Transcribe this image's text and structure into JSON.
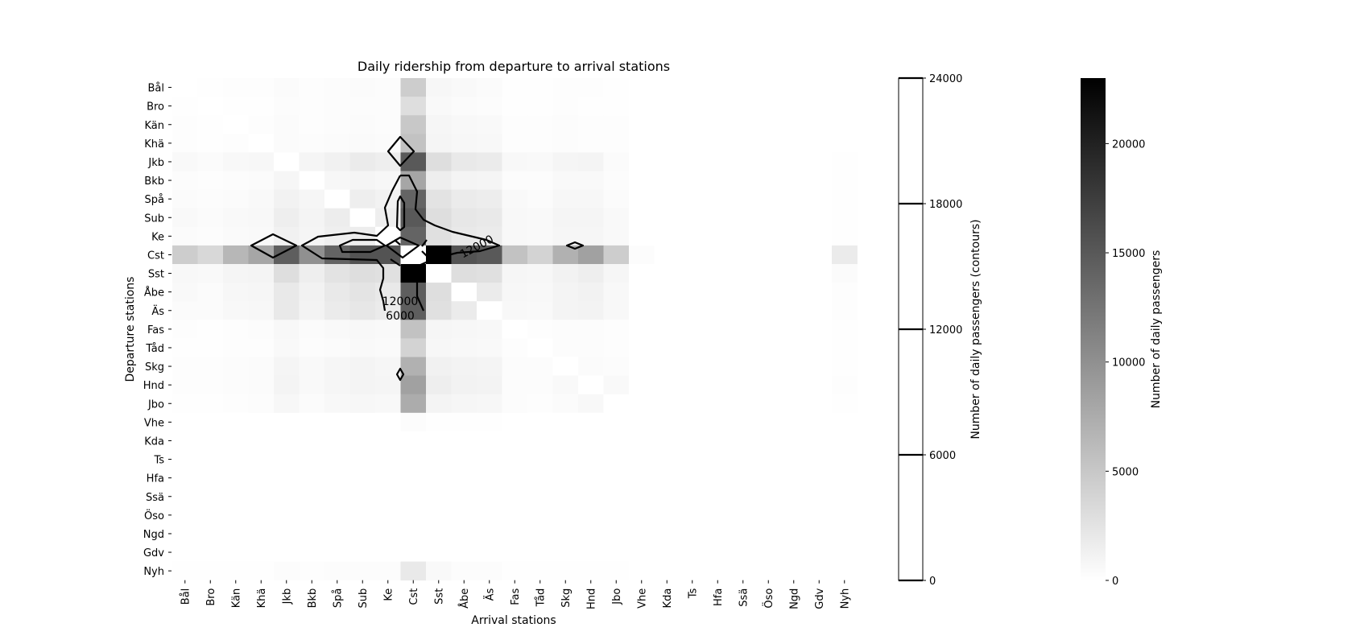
{
  "chart_data": {
    "type": "heatmap",
    "title": "Daily ridership from departure to arrival stations",
    "xlabel": "Arrival stations",
    "ylabel": "Departure stations",
    "stations": [
      "Bål",
      "Bro",
      "Kän",
      "Khä",
      "Jkb",
      "Bkb",
      "Spå",
      "Sub",
      "Ke",
      "Cst",
      "Sst",
      "Åbe",
      "Äs",
      "Fas",
      "Tåd",
      "Skg",
      "Hnd",
      "Jbo",
      "Vhe",
      "Kda",
      "Ts",
      "Hfa",
      "Ssä",
      "Öso",
      "Ngd",
      "Gdv",
      "Nyh"
    ],
    "values": [
      [
        0,
        100,
        150,
        150,
        400,
        200,
        300,
        400,
        300,
        4500,
        700,
        500,
        400,
        100,
        100,
        200,
        150,
        100,
        0,
        0,
        0,
        0,
        0,
        0,
        0,
        0,
        0
      ],
      [
        100,
        0,
        100,
        100,
        300,
        150,
        250,
        300,
        250,
        3000,
        500,
        400,
        300,
        100,
        100,
        150,
        100,
        100,
        0,
        0,
        0,
        0,
        0,
        0,
        0,
        0,
        0
      ],
      [
        150,
        100,
        0,
        150,
        400,
        200,
        300,
        400,
        300,
        5000,
        800,
        600,
        500,
        150,
        150,
        250,
        200,
        150,
        0,
        0,
        0,
        0,
        0,
        0,
        0,
        0,
        0
      ],
      [
        150,
        100,
        150,
        0,
        400,
        250,
        350,
        450,
        350,
        5500,
        900,
        700,
        600,
        150,
        150,
        250,
        200,
        150,
        0,
        0,
        0,
        0,
        0,
        0,
        0,
        0,
        0
      ],
      [
        500,
        400,
        600,
        700,
        0,
        900,
        1300,
        1800,
        1500,
        15000,
        3000,
        2000,
        1800,
        600,
        500,
        900,
        1000,
        400,
        0,
        0,
        0,
        0,
        0,
        0,
        0,
        0,
        100
      ],
      [
        300,
        200,
        300,
        350,
        800,
        0,
        700,
        900,
        700,
        8000,
        1500,
        1000,
        900,
        300,
        300,
        500,
        500,
        300,
        0,
        0,
        0,
        0,
        0,
        0,
        0,
        0,
        50
      ],
      [
        400,
        300,
        400,
        500,
        1200,
        800,
        0,
        1500,
        1200,
        14000,
        2500,
        1800,
        1600,
        500,
        400,
        700,
        700,
        400,
        0,
        0,
        0,
        0,
        0,
        0,
        0,
        0,
        100
      ],
      [
        500,
        350,
        500,
        600,
        1500,
        1000,
        1600,
        0,
        1500,
        15000,
        3000,
        2200,
        2000,
        600,
        500,
        900,
        900,
        500,
        0,
        0,
        0,
        0,
        0,
        0,
        0,
        0,
        100
      ],
      [
        400,
        300,
        450,
        550,
        1300,
        900,
        1400,
        1600,
        0,
        14000,
        2800,
        2000,
        1800,
        600,
        500,
        800,
        800,
        500,
        0,
        0,
        0,
        0,
        0,
        0,
        0,
        0,
        100
      ],
      [
        4500,
        3500,
        6500,
        8000,
        14500,
        10000,
        14000,
        15500,
        15500,
        0,
        23000,
        15500,
        15000,
        5500,
        4000,
        7000,
        8500,
        4500,
        300,
        0,
        0,
        0,
        0,
        0,
        0,
        0,
        1800
      ],
      [
        600,
        500,
        900,
        1000,
        3000,
        1500,
        2500,
        3000,
        2800,
        23000,
        0,
        3000,
        2800,
        800,
        700,
        1200,
        1500,
        800,
        0,
        0,
        0,
        0,
        0,
        0,
        0,
        0,
        400
      ],
      [
        500,
        400,
        700,
        800,
        2000,
        1200,
        2000,
        2400,
        2000,
        14500,
        3000,
        0,
        1800,
        700,
        600,
        1000,
        1200,
        600,
        0,
        0,
        0,
        0,
        0,
        0,
        0,
        0,
        200
      ],
      [
        400,
        350,
        600,
        700,
        2000,
        1100,
        1800,
        2200,
        1800,
        14500,
        2800,
        1800,
        0,
        600,
        500,
        1000,
        1100,
        600,
        0,
        0,
        0,
        0,
        0,
        0,
        0,
        0,
        200
      ],
      [
        150,
        100,
        200,
        250,
        600,
        350,
        500,
        600,
        550,
        5500,
        800,
        700,
        600,
        0,
        200,
        300,
        300,
        200,
        0,
        0,
        0,
        0,
        0,
        0,
        0,
        0,
        50
      ],
      [
        100,
        100,
        150,
        200,
        500,
        300,
        400,
        500,
        450,
        4000,
        700,
        600,
        500,
        200,
        0,
        300,
        300,
        200,
        0,
        0,
        0,
        0,
        0,
        0,
        0,
        0,
        50
      ],
      [
        200,
        150,
        300,
        350,
        900,
        500,
        800,
        1000,
        800,
        7000,
        1300,
        1100,
        1000,
        300,
        300,
        0,
        400,
        300,
        0,
        0,
        0,
        0,
        0,
        0,
        0,
        0,
        100
      ],
      [
        200,
        150,
        300,
        350,
        1000,
        500,
        800,
        1000,
        900,
        8500,
        1500,
        1200,
        1100,
        300,
        300,
        500,
        0,
        500,
        0,
        0,
        0,
        0,
        0,
        0,
        0,
        0,
        150
      ],
      [
        100,
        100,
        200,
        250,
        700,
        400,
        600,
        700,
        600,
        7500,
        1000,
        800,
        700,
        300,
        200,
        400,
        600,
        0,
        0,
        0,
        0,
        0,
        0,
        0,
        0,
        0,
        50
      ],
      [
        0,
        0,
        0,
        0,
        0,
        0,
        0,
        0,
        0,
        300,
        100,
        50,
        50,
        0,
        0,
        0,
        0,
        0,
        0,
        0,
        0,
        0,
        0,
        0,
        0,
        0,
        0
      ],
      [
        0,
        0,
        0,
        0,
        0,
        0,
        0,
        0,
        0,
        0,
        0,
        0,
        0,
        0,
        0,
        0,
        0,
        0,
        0,
        0,
        0,
        0,
        0,
        0,
        0,
        0,
        0
      ],
      [
        0,
        0,
        0,
        0,
        0,
        0,
        0,
        0,
        0,
        0,
        0,
        0,
        0,
        0,
        0,
        0,
        0,
        0,
        0,
        0,
        0,
        0,
        0,
        0,
        0,
        0,
        0
      ],
      [
        0,
        0,
        0,
        0,
        0,
        0,
        0,
        0,
        0,
        0,
        0,
        0,
        0,
        0,
        0,
        0,
        0,
        0,
        0,
        0,
        0,
        0,
        0,
        0,
        0,
        0,
        0
      ],
      [
        0,
        0,
        0,
        0,
        0,
        0,
        0,
        0,
        0,
        0,
        0,
        0,
        0,
        0,
        0,
        0,
        0,
        0,
        0,
        0,
        0,
        0,
        0,
        0,
        0,
        0,
        0
      ],
      [
        0,
        0,
        0,
        0,
        0,
        0,
        0,
        0,
        0,
        0,
        0,
        0,
        0,
        0,
        0,
        0,
        0,
        0,
        0,
        0,
        0,
        0,
        0,
        0,
        0,
        0,
        0
      ],
      [
        0,
        0,
        0,
        0,
        0,
        0,
        0,
        0,
        0,
        0,
        0,
        0,
        0,
        0,
        0,
        0,
        0,
        0,
        0,
        0,
        0,
        0,
        0,
        0,
        0,
        0,
        0
      ],
      [
        0,
        0,
        0,
        0,
        0,
        0,
        0,
        0,
        0,
        0,
        0,
        0,
        0,
        0,
        0,
        0,
        0,
        0,
        0,
        0,
        0,
        0,
        0,
        0,
        0,
        0,
        0
      ],
      [
        100,
        50,
        100,
        100,
        300,
        150,
        250,
        300,
        250,
        2000,
        500,
        300,
        300,
        50,
        50,
        100,
        100,
        50,
        0,
        0,
        0,
        0,
        0,
        0,
        0,
        0,
        0
      ]
    ],
    "contour_levels": [
      6000,
      12000
    ],
    "contour_labels": [
      "12000",
      "12000",
      "6000"
    ],
    "contour_colorbar": {
      "label": "Number of daily passengers (contours)",
      "range": [
        0,
        24000
      ],
      "ticks": [
        "0",
        "6000",
        "12000",
        "18000",
        "24000"
      ]
    },
    "colorbar": {
      "label": "Number of daily passengers",
      "range": [
        0,
        23000
      ],
      "ticks": [
        "0",
        "5000",
        "10000",
        "15000",
        "20000"
      ]
    },
    "colormap": [
      "#ffffff",
      "#000000"
    ],
    "grid": false
  }
}
